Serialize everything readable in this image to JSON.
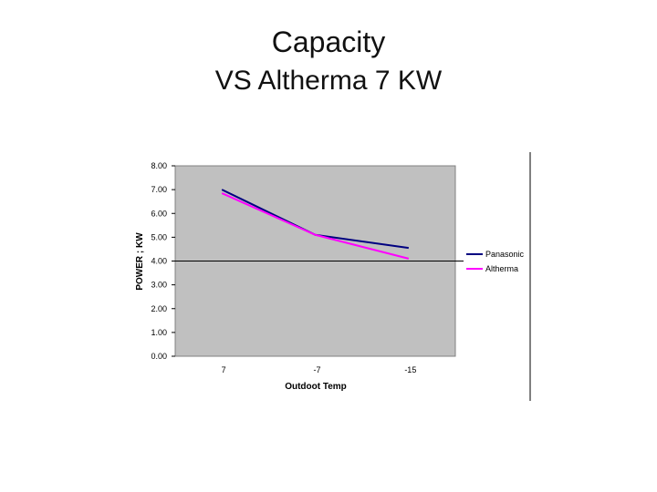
{
  "slide": {
    "title": "Capacity",
    "subtitle": "VS Altherma 7 KW"
  },
  "chart_data": {
    "type": "line",
    "title": "",
    "xlabel": "Outdoot Temp",
    "ylabel": "POWER ; KW",
    "categories": [
      "7",
      "-7",
      "-15"
    ],
    "ylim": [
      0,
      8
    ],
    "ytick_labels": [
      "0.00",
      "1.00",
      "2.00",
      "3.00",
      "4.00",
      "5.00",
      "6.00",
      "7.00",
      "8.00"
    ],
    "grid": true,
    "legend_position": "right",
    "series": [
      {
        "name": "Panasonic",
        "color": "#000080",
        "values": [
          7.0,
          5.1,
          4.55
        ]
      },
      {
        "name": "Altherma",
        "color": "#ff00ff",
        "values": [
          6.85,
          5.1,
          4.1
        ]
      }
    ]
  }
}
